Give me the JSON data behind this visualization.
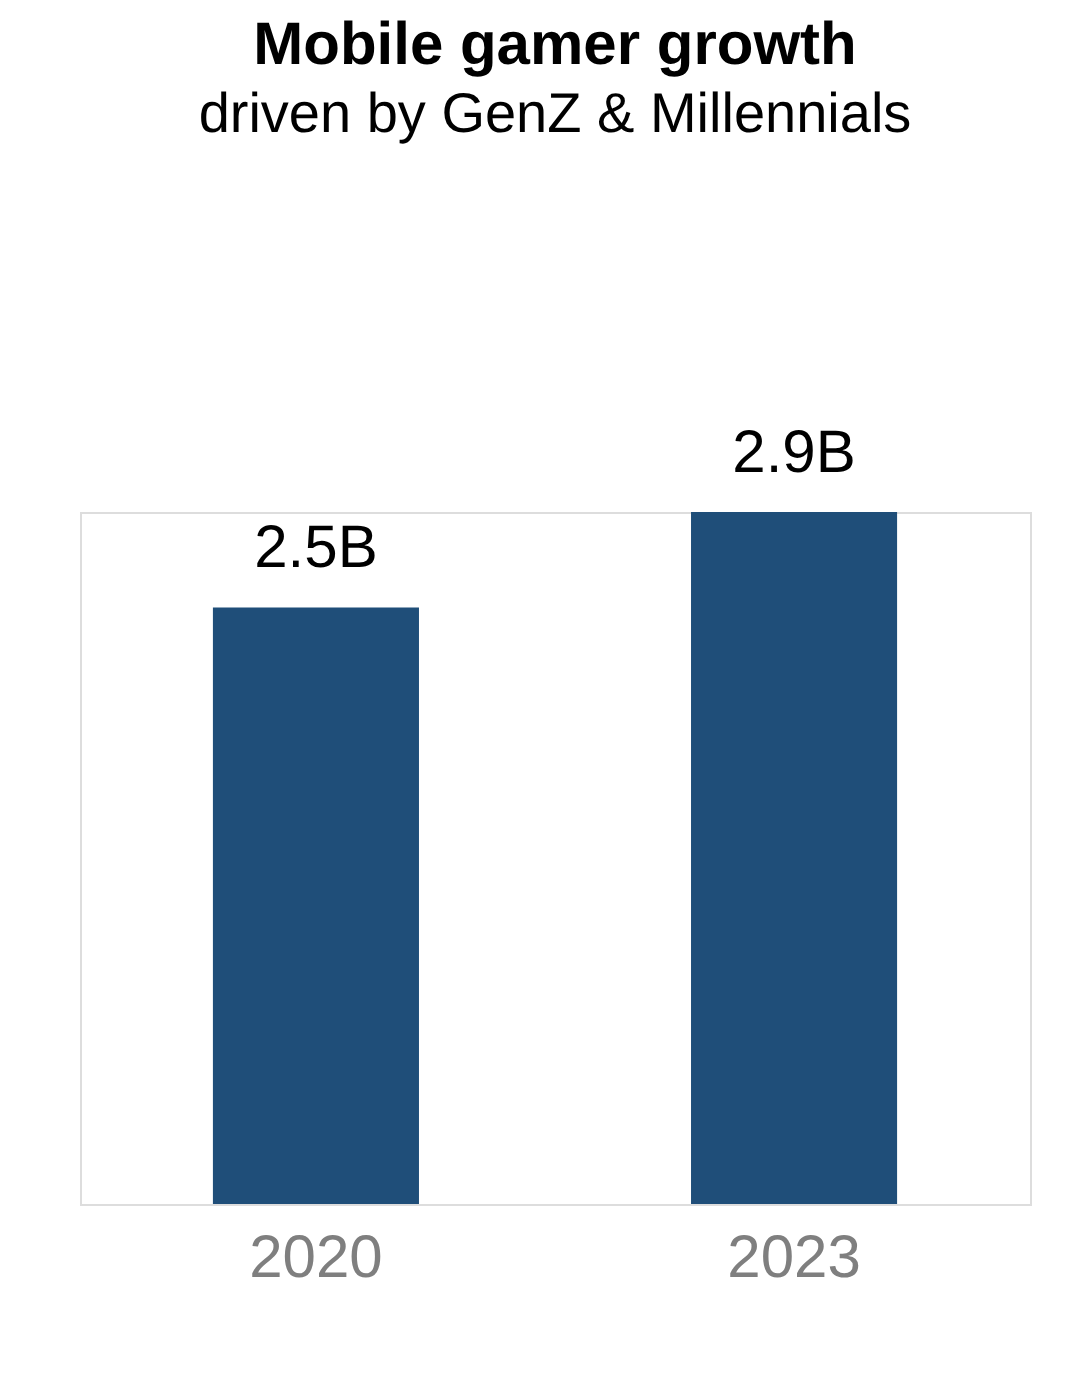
{
  "chart_data": {
    "type": "bar",
    "title": "Mobile gamer growth",
    "subtitle": "driven by GenZ & Millennials",
    "categories": [
      "2020",
      "2023"
    ],
    "values": [
      2.5,
      2.9
    ],
    "value_labels": [
      "2.5B",
      "2.9B"
    ],
    "color": "#1f4e79",
    "grid": false
  }
}
